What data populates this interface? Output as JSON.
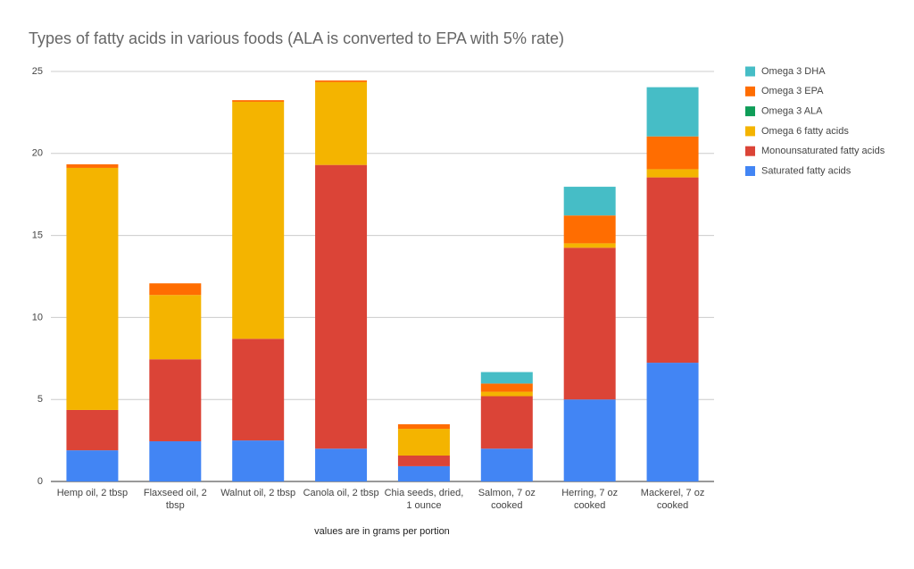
{
  "chart_data": {
    "type": "stacked_bar",
    "title": "Types of fatty acids in various foods (ALA is converted to EPA with 5% rate)",
    "x_label": "values are in grams per portion",
    "categories": [
      "Hemp oil, 2 tbsp",
      "Flaxseed oil, 2 tbsp",
      "Walnut oil, 2 tbsp",
      "Canola oil, 2 tbsp",
      "Chia seeds, dried, 1 ounce",
      "Salmon, 7 oz cooked",
      "Herring, 7 oz cooked",
      "Mackerel, 7 oz cooked"
    ],
    "series": [
      {
        "name": "Saturated fatty acids",
        "color": "#4285f4",
        "values": [
          1.9,
          2.45,
          2.5,
          2.0,
          0.93,
          2.0,
          5.0,
          7.24
        ]
      },
      {
        "name": "Monounsaturated fatty acids",
        "color": "#db4437",
        "values": [
          2.46,
          5.0,
          6.2,
          17.3,
          0.65,
          3.2,
          9.25,
          11.3
        ]
      },
      {
        "name": "Omega 6 fatty acids",
        "color": "#f4b400",
        "values": [
          14.76,
          3.92,
          14.45,
          5.05,
          1.63,
          0.27,
          0.27,
          0.5
        ]
      },
      {
        "name": "Omega 3 ALA",
        "color": "#0f9d58",
        "values": [
          0,
          0,
          0,
          0,
          0,
          0,
          0,
          0
        ]
      },
      {
        "name": "Omega 3 EPA",
        "color": "#ff6d01",
        "values": [
          0.22,
          0.71,
          0.1,
          0.1,
          0.28,
          0.5,
          1.7,
          2.0
        ]
      },
      {
        "name": "Omega 3 DHA",
        "color": "#46bdc6",
        "values": [
          0,
          0,
          0,
          0,
          0,
          0.7,
          1.75,
          3.0
        ]
      }
    ],
    "ylim": [
      0,
      25
    ],
    "yticks": [
      0,
      5,
      10,
      15,
      20,
      25
    ],
    "grid": true,
    "legend": "right"
  }
}
